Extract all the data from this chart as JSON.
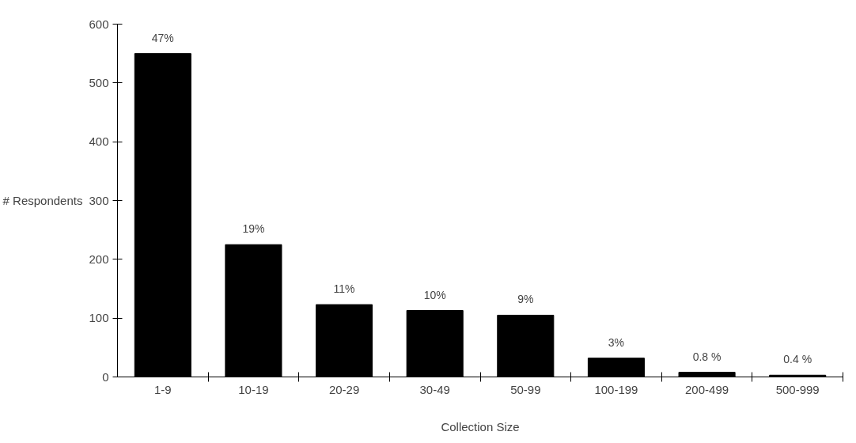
{
  "chart_data": {
    "type": "bar",
    "xlabel": "Collection Size",
    "ylabel": "# Respondents",
    "categories": [
      "1-9",
      "10-19",
      "20-29",
      "30-49",
      "50-99",
      "100-199",
      "200-499",
      "500-999"
    ],
    "values": [
      550,
      225,
      123,
      113,
      105,
      32,
      8,
      3
    ],
    "annotations": [
      {
        "text": "47%",
        "x": "1-9",
        "y": 550
      },
      {
        "text": "19%",
        "x": "10-19",
        "y": 225
      },
      {
        "text": "11%",
        "x": "20-29",
        "y": 123
      },
      {
        "text": "10%",
        "x": "30-49",
        "y": 113
      },
      {
        "text": "9%",
        "x": "50-99",
        "y": 105
      },
      {
        "text": "3%",
        "x": "100-199",
        "y": 32
      },
      {
        "text": "0.8 %",
        "x": "200-499",
        "y": 8
      },
      {
        "text": "0.4 %",
        "x": "500-999",
        "y": 3
      }
    ],
    "color": "#000000",
    "ylim": [
      0,
      600
    ],
    "yticks": [
      0,
      100,
      200,
      300,
      400,
      500,
      600
    ],
    "grid": false
  }
}
